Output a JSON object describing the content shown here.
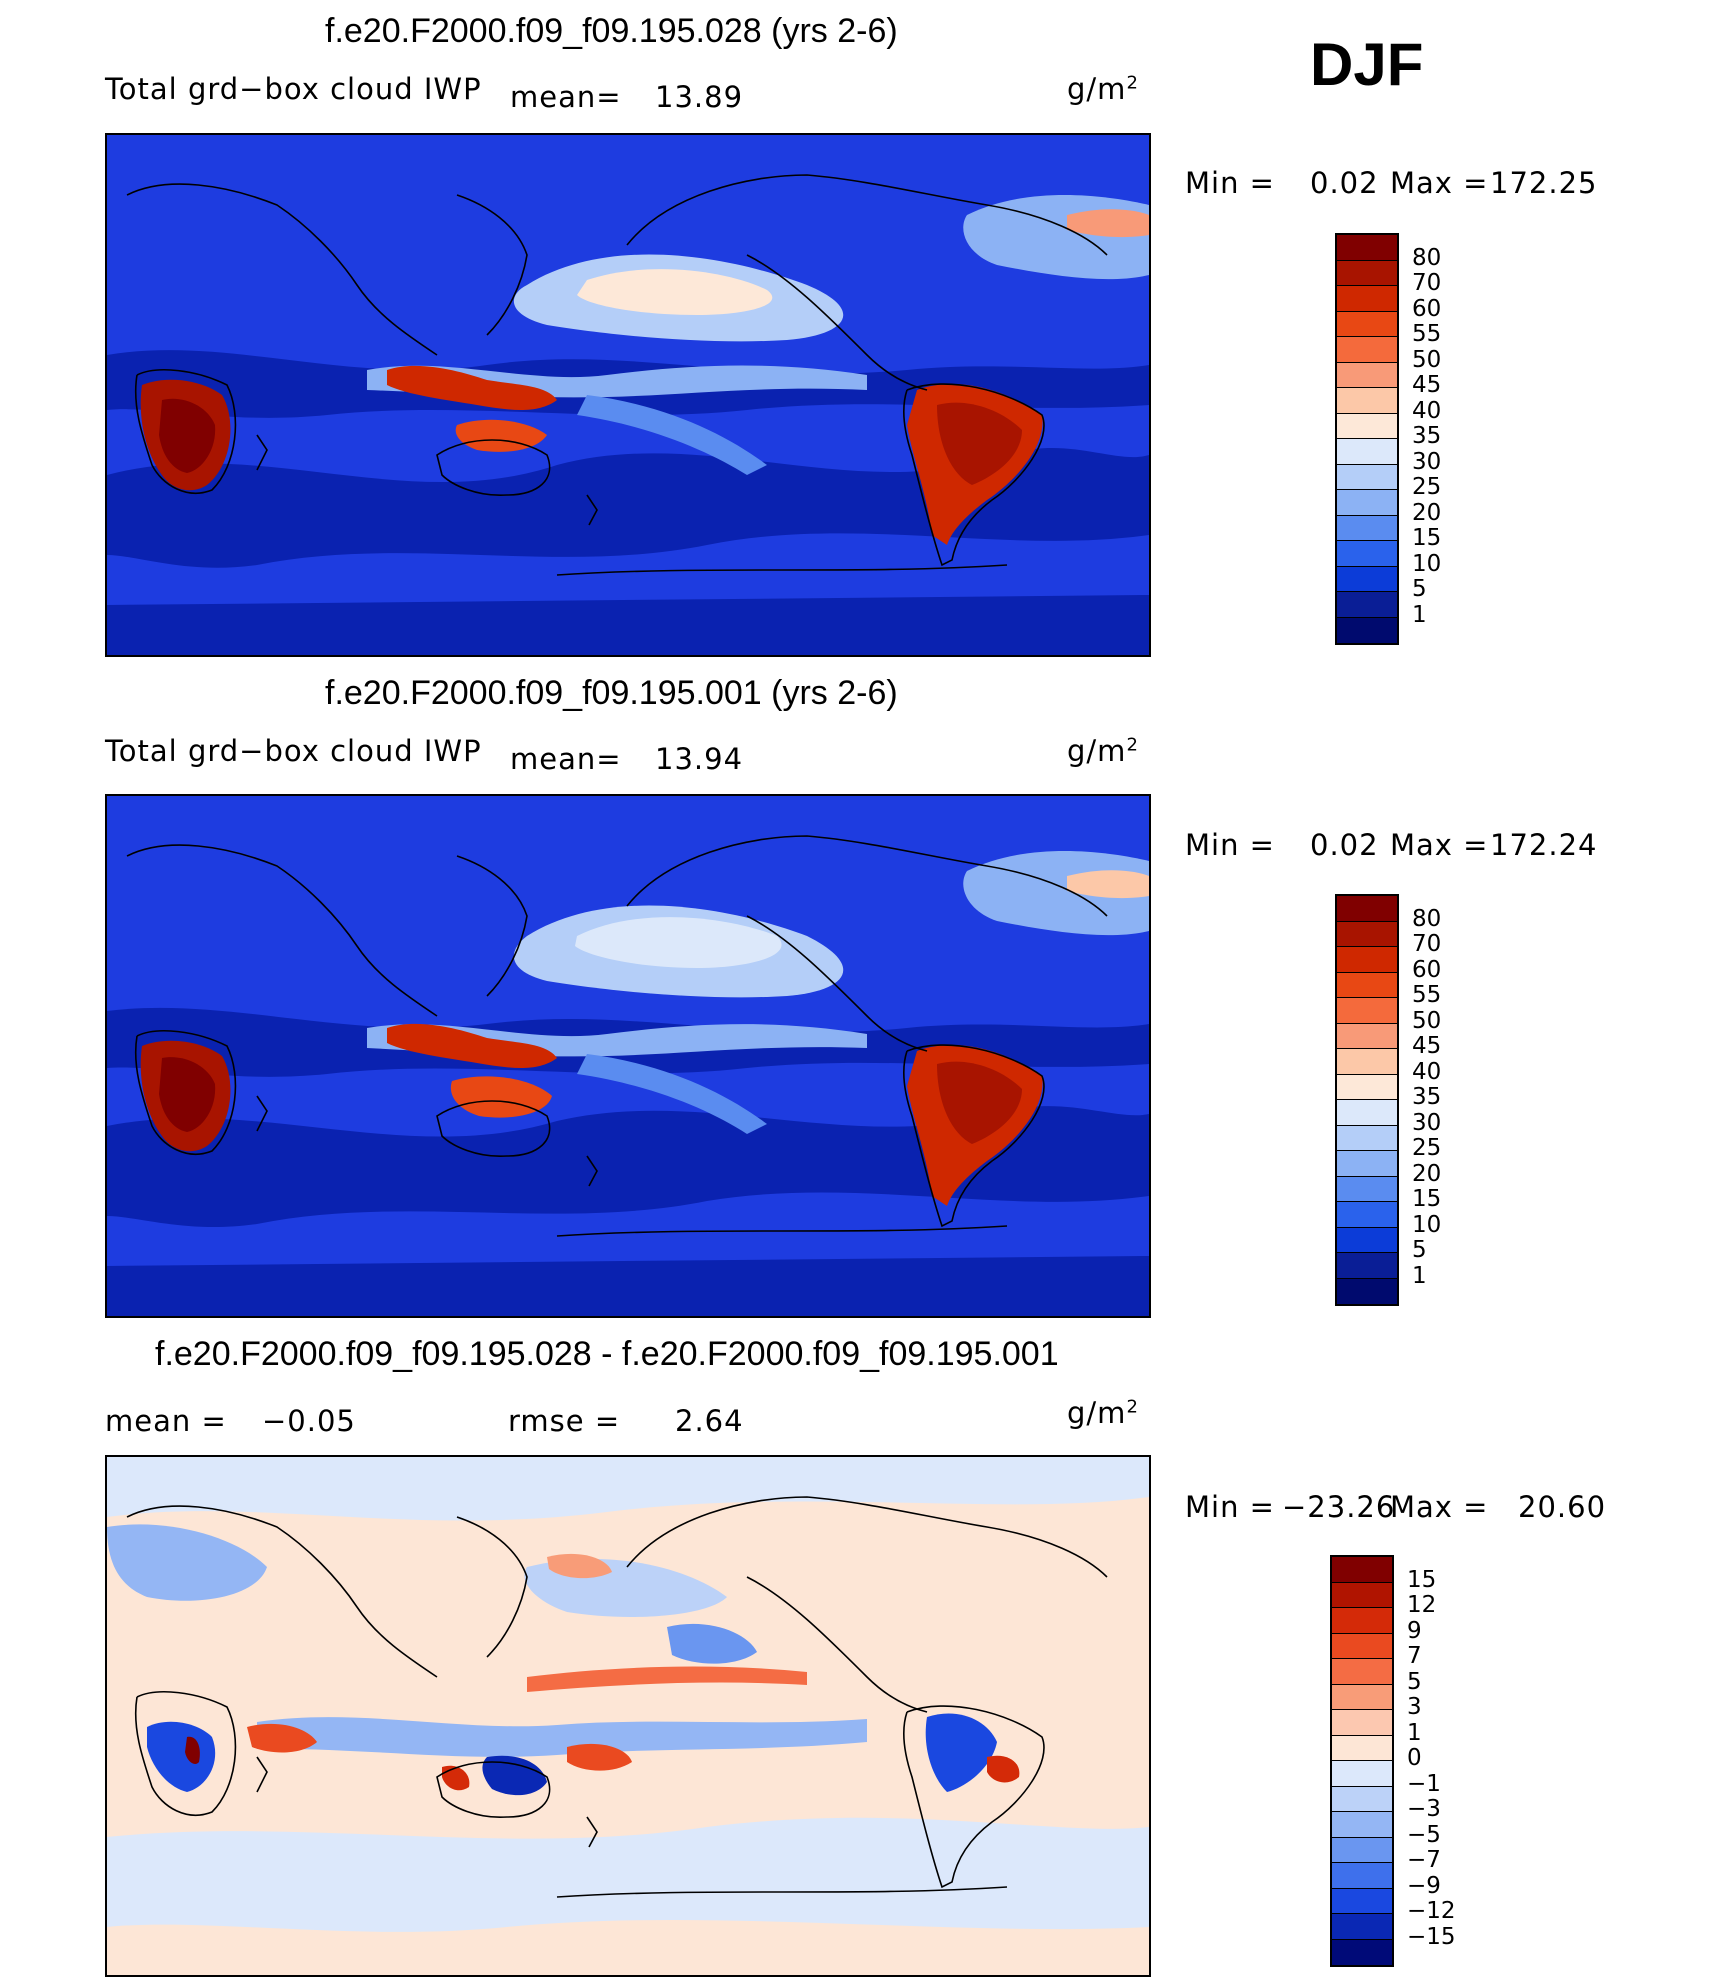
{
  "season": "DJF",
  "units": "g/m",
  "units_exp": "2",
  "panels": [
    {
      "title": "f.e20.F2000.f09_f09.195.028 (yrs 2-6)",
      "variable": "Total grd−box cloud IWP",
      "mean_label": "mean=",
      "mean_value": "13.89",
      "min_label": "Min  =",
      "min_value": "0.02",
      "max_label": "Max  =",
      "max_value": "172.25",
      "levels": [
        "80",
        "70",
        "60",
        "55",
        "50",
        "45",
        "40",
        "35",
        "30",
        "25",
        "20",
        "15",
        "10",
        "5",
        "1"
      ]
    },
    {
      "title": "f.e20.F2000.f09_f09.195.001 (yrs 2-6)",
      "variable": "Total grd−box cloud IWP",
      "mean_label": "mean=",
      "mean_value": "13.94",
      "min_label": "Min  =",
      "min_value": "0.02",
      "max_label": "Max  =",
      "max_value": "172.24",
      "levels": [
        "80",
        "70",
        "60",
        "55",
        "50",
        "45",
        "40",
        "35",
        "30",
        "25",
        "20",
        "15",
        "10",
        "5",
        "1"
      ]
    },
    {
      "title": "f.e20.F2000.f09_f09.195.028 - f.e20.F2000.f09_f09.195.001",
      "mean_label": "mean  =",
      "mean_value": "−0.05",
      "rmse_label": "rmse  =",
      "rmse_value": "2.64",
      "min_label": "Min  =",
      "min_value": "−23.26",
      "max_label": "Max  =",
      "max_value": "20.60",
      "levels": [
        "15",
        "12",
        "9",
        "7",
        "5",
        "3",
        "1",
        "0",
        "−1",
        "−3",
        "−5",
        "−7",
        "−9",
        "−12",
        "−15"
      ]
    }
  ],
  "colors": {
    "abs_scale": [
      "#800000",
      "#a81400",
      "#cf2800",
      "#e84814",
      "#f46a3c",
      "#f89a78",
      "#fcc8a8",
      "#fde8d8",
      "#dce8fa",
      "#b4cef8",
      "#8cb2f4",
      "#5a8cf0",
      "#2a62ec",
      "#0c3cd8",
      "#0a1e96",
      "#000a6e"
    ],
    "diff_scale": [
      "#800000",
      "#b01400",
      "#d42a08",
      "#ea4a20",
      "#f46c44",
      "#f89c78",
      "#fcc8b0",
      "#fde6d6",
      "#dce8fb",
      "#bcd2f8",
      "#94b6f4",
      "#6a96f0",
      "#3e70ec",
      "#1a48e0",
      "#0a28b4",
      "#000a78"
    ],
    "ocean_abs": "#1e3ce0",
    "ocean_deep": "#0a22b0",
    "ocean_diff": "#fde6d6",
    "coast": "#000000"
  }
}
